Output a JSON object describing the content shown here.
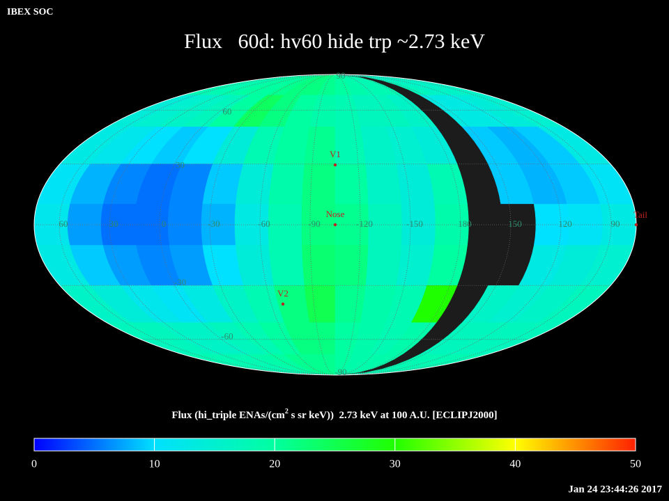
{
  "chart_data": {
    "type": "mollweide-map",
    "source": "IBEX SOC",
    "title": "Flux   60d: hv60 hide trp ~2.73 keV",
    "colorbar_label": [
      "Flux (hi_triple ENAs/(cm",
      "2",
      " s sr keV))  2.73 keV at 100 A.U. [ECLIPJ2000]"
    ],
    "timestamp": "Jan 24 23:44:26 2017",
    "lon_labels": [
      60,
      30,
      0,
      -30,
      -60,
      -90,
      -120,
      -150,
      180,
      150,
      120,
      90
    ],
    "lat_labels": [
      90,
      60,
      30,
      -30,
      -60,
      -90
    ],
    "markers": [
      "V1",
      "Nose",
      "V2",
      "Tail"
    ],
    "clim": [
      0,
      50
    ],
    "cticks": [
      0,
      10,
      20,
      30,
      40,
      50
    ],
    "colormap": [
      "#0000ff",
      "#00e0ff",
      "#00ffa0",
      "#20ff00",
      "#ffff00",
      "#ff2000"
    ],
    "cells": [
      [
        18,
        18,
        19,
        20,
        20,
        21,
        22,
        22,
        21,
        20,
        19,
        18,
        18,
        null,
        17,
        16,
        16,
        16
      ],
      [
        14,
        15,
        16,
        17,
        20,
        24,
        22,
        20,
        19,
        18,
        17,
        17,
        16,
        null,
        13,
        13,
        14,
        15
      ],
      [
        13,
        12,
        10,
        9,
        10,
        14,
        18,
        20,
        21,
        18,
        16,
        15,
        14,
        null,
        9,
        8,
        9,
        13
      ],
      [
        11,
        8,
        6,
        5,
        6,
        9,
        14,
        19,
        22,
        20,
        16,
        14,
        18,
        null,
        9,
        8,
        9,
        11
      ],
      [
        12,
        7,
        5,
        5,
        6,
        8,
        13,
        18,
        22,
        21,
        17,
        14,
        19,
        null,
        null,
        10,
        11,
        13
      ],
      [
        13,
        9,
        7,
        6,
        7,
        10,
        14,
        18,
        23,
        22,
        17,
        15,
        20,
        null,
        null,
        13,
        14,
        15
      ],
      [
        16,
        14,
        12,
        11,
        13,
        16,
        18,
        22,
        25,
        21,
        19,
        18,
        30,
        null,
        16,
        15,
        16,
        17
      ],
      [
        17,
        17,
        16,
        16,
        17,
        18,
        20,
        22,
        22,
        20,
        19,
        18,
        19,
        null,
        17,
        17,
        17,
        17
      ],
      [
        18,
        18,
        18,
        18,
        19,
        20,
        21,
        21,
        21,
        20,
        19,
        19,
        19,
        null,
        18,
        18,
        18,
        18
      ]
    ]
  }
}
